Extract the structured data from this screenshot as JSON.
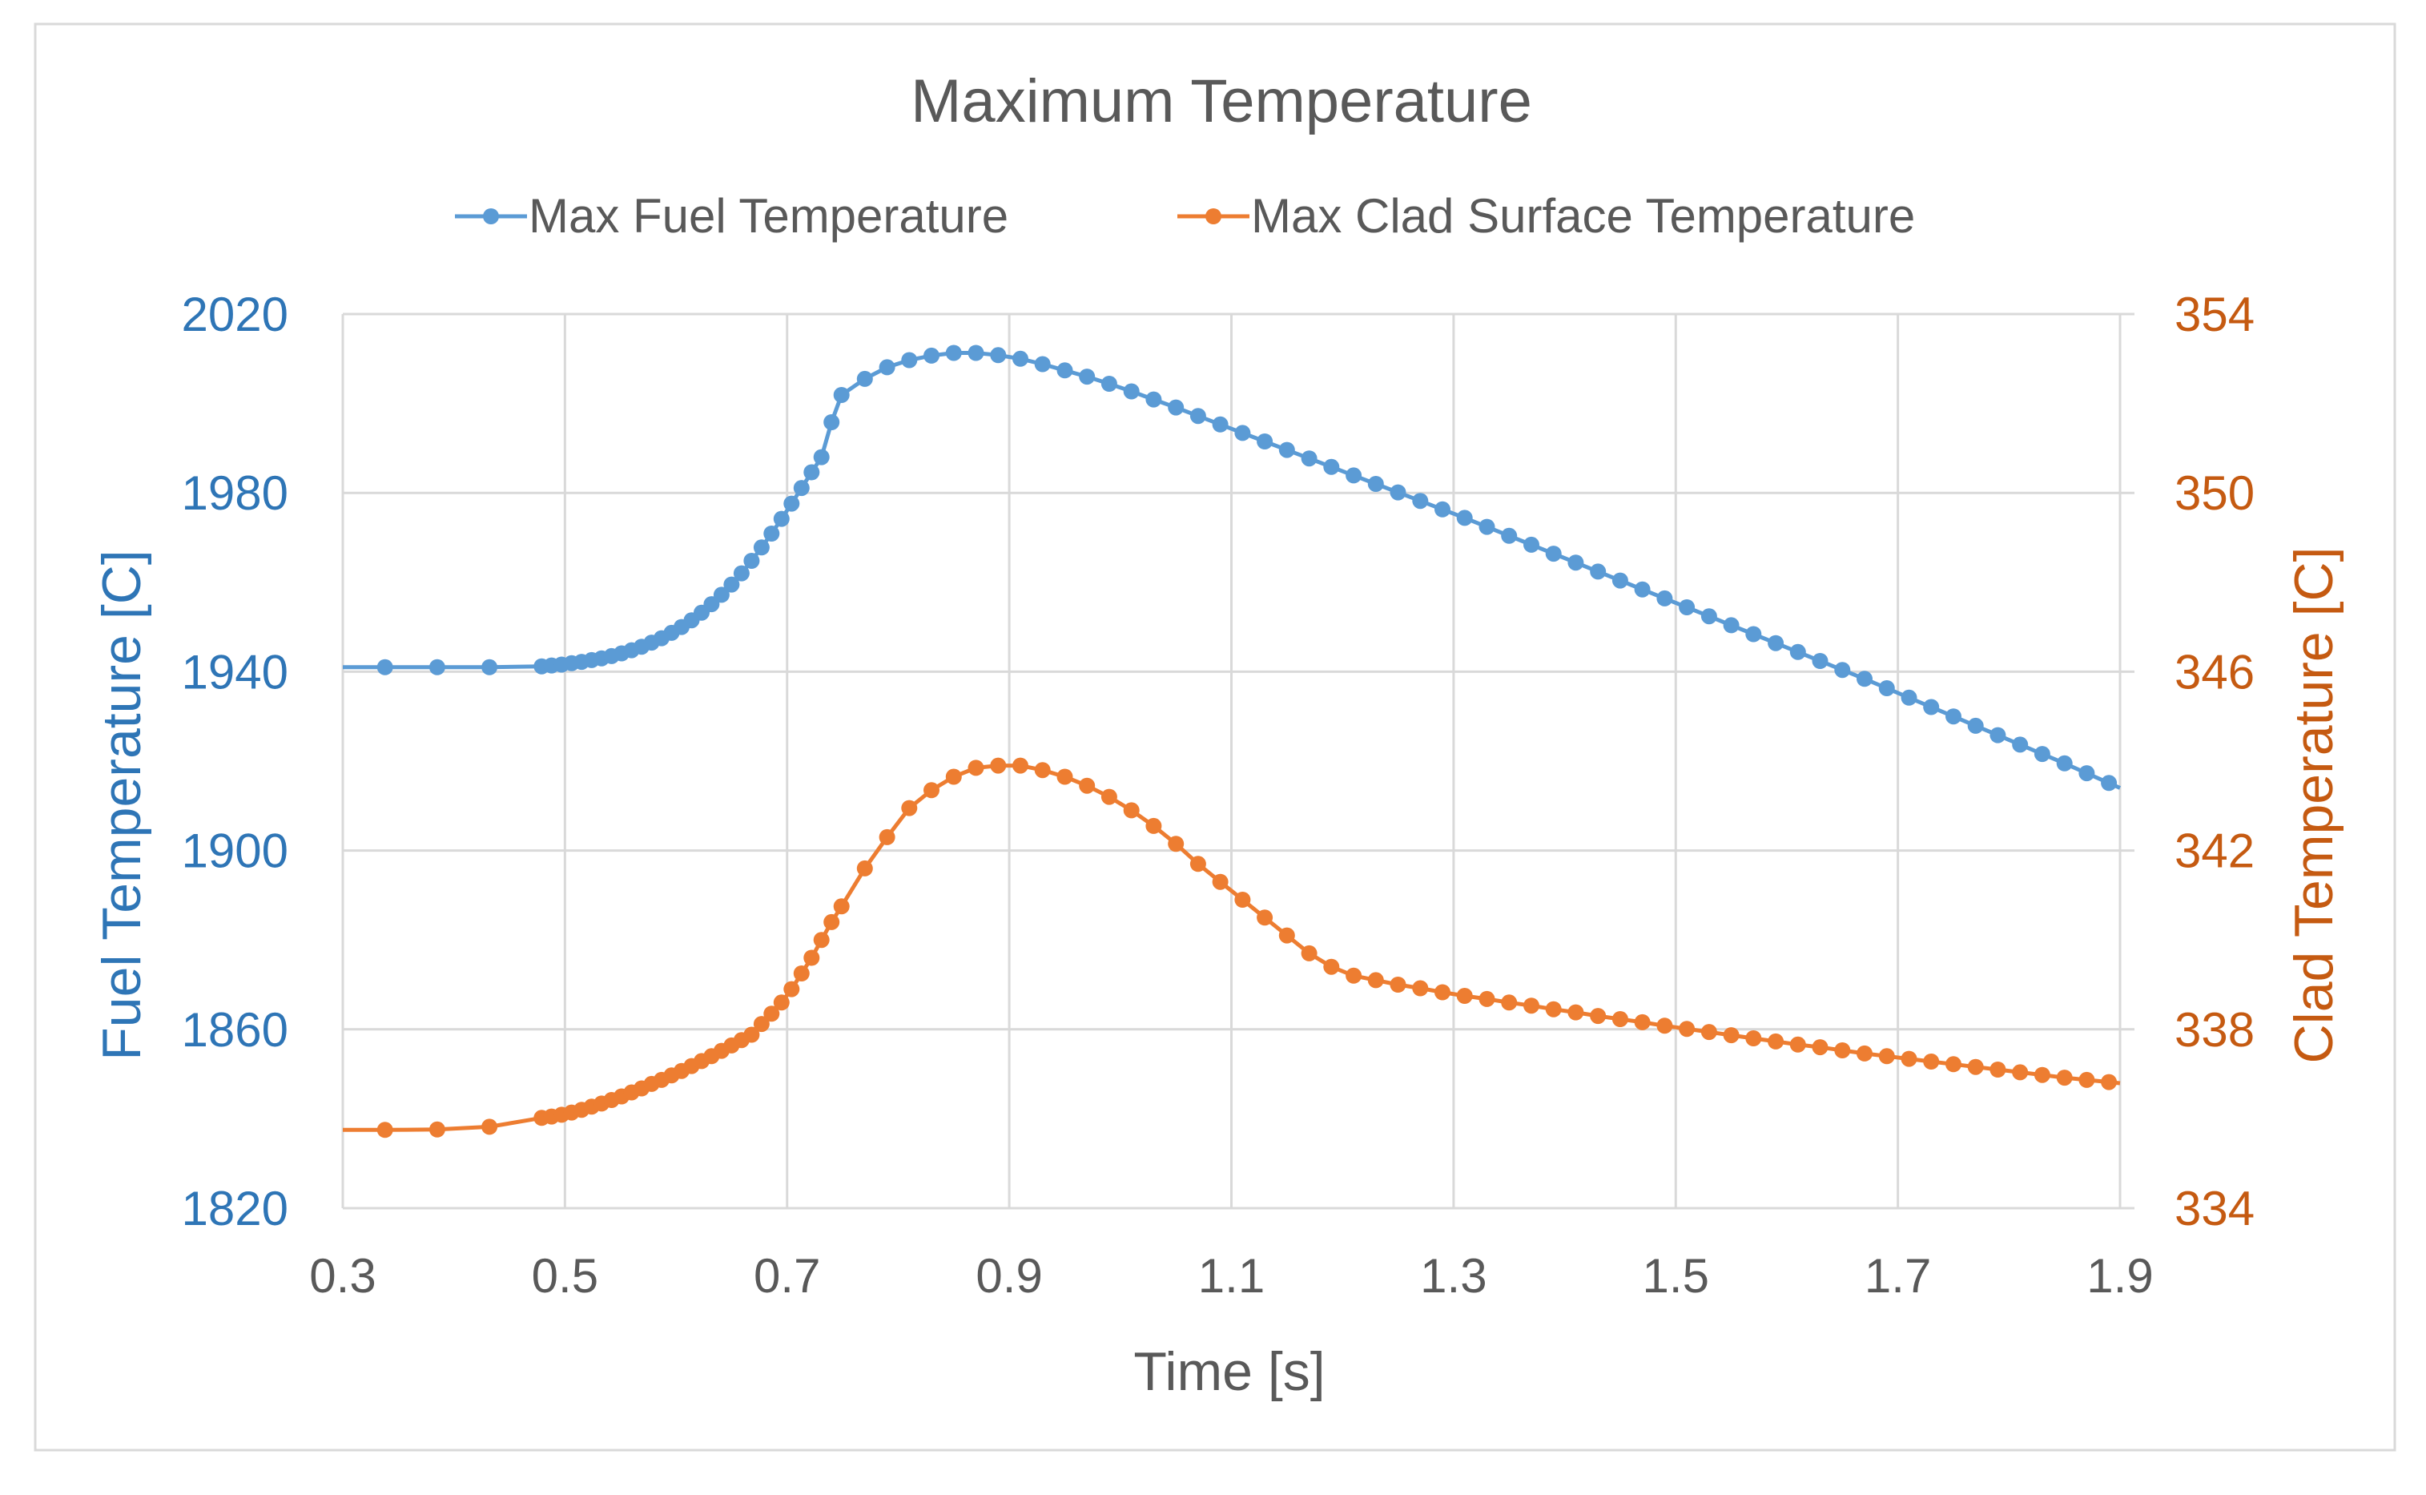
{
  "chart_data": {
    "type": "line",
    "title": "Maximum Temperature",
    "xlabel": "Time [s]",
    "ylabel": "Fuel Temperature [C]",
    "y2label": "Clad Temperature [C]",
    "xlim": [
      0.3,
      1.9
    ],
    "ylim": [
      1820,
      2020
    ],
    "y2lim": [
      334,
      354
    ],
    "x_ticks": [
      "0.3",
      "0.5",
      "0.7",
      "0.9",
      "1.1",
      "1.3",
      "1.5",
      "1.7",
      "1.9"
    ],
    "y_ticks": [
      "1820",
      "1860",
      "1900",
      "1940",
      "1980",
      "2020"
    ],
    "y2_ticks": [
      "334",
      "338",
      "342",
      "346",
      "350",
      "354"
    ],
    "grid": true,
    "legend_position": "top-center",
    "colors": {
      "fuel": "#5B9BD5",
      "clad": "#ED7D31",
      "fuel_axis_text": "#2E75B6",
      "clad_axis_text": "#C55A11",
      "text": "#595959",
      "grid": "#D9D9D9"
    },
    "series": [
      {
        "name": "Max Fuel Temperature",
        "axis": "left",
        "x": [
          0.338,
          0.385,
          0.432,
          0.479,
          0.488,
          0.497,
          0.506,
          0.515,
          0.524,
          0.533,
          0.542,
          0.551,
          0.56,
          0.569,
          0.578,
          0.587,
          0.596,
          0.605,
          0.614,
          0.623,
          0.632,
          0.641,
          0.65,
          0.659,
          0.668,
          0.677,
          0.686,
          0.695,
          0.704,
          0.713,
          0.722,
          0.731,
          0.74,
          0.749,
          0.77,
          0.79,
          0.81,
          0.83,
          0.85,
          0.87,
          0.89,
          0.91,
          0.93,
          0.95,
          0.97,
          0.99,
          1.01,
          1.03,
          1.05,
          1.07,
          1.09,
          1.11,
          1.13,
          1.15,
          1.17,
          1.19,
          1.21,
          1.23,
          1.25,
          1.27,
          1.29,
          1.31,
          1.33,
          1.35,
          1.37,
          1.39,
          1.41,
          1.43,
          1.45,
          1.47,
          1.49,
          1.51,
          1.53,
          1.55,
          1.57,
          1.59,
          1.61,
          1.63,
          1.65,
          1.67,
          1.69,
          1.71,
          1.73,
          1.75,
          1.77,
          1.79,
          1.81,
          1.83,
          1.85,
          1.87,
          1.89
        ],
        "values": [
          1941.0,
          1941.0,
          1941.0,
          1941.2,
          1941.4,
          1941.6,
          1941.9,
          1942.2,
          1942.6,
          1943.0,
          1943.5,
          1944.1,
          1944.8,
          1945.6,
          1946.5,
          1947.5,
          1948.7,
          1950.0,
          1951.5,
          1953.2,
          1955.1,
          1957.2,
          1959.5,
          1962.0,
          1964.8,
          1967.8,
          1970.9,
          1974.2,
          1977.6,
          1981.1,
          1984.6,
          1988.0,
          1995.8,
          2001.9,
          2005.5,
          2008.1,
          2009.7,
          2010.7,
          2011.3,
          2011.3,
          2010.8,
          2010.0,
          2008.8,
          2007.4,
          2006.0,
          2004.4,
          2002.7,
          2000.9,
          1999.1,
          1997.2,
          1995.3,
          1993.4,
          1991.5,
          1989.6,
          1987.7,
          1985.8,
          1983.9,
          1982.0,
          1980.1,
          1978.2,
          1976.3,
          1974.4,
          1972.4,
          1970.4,
          1968.4,
          1966.4,
          1964.4,
          1962.4,
          1960.4,
          1958.4,
          1956.4,
          1954.4,
          1952.4,
          1950.4,
          1948.4,
          1946.4,
          1944.4,
          1942.4,
          1940.4,
          1938.4,
          1936.3,
          1934.2,
          1932.1,
          1930.0,
          1927.9,
          1925.8,
          1923.7,
          1921.6,
          1919.5,
          1917.3,
          1915.1
        ]
      },
      {
        "name": "Max Clad Surface Temperature",
        "axis": "right",
        "x": [
          0.338,
          0.385,
          0.432,
          0.479,
          0.488,
          0.497,
          0.506,
          0.515,
          0.524,
          0.533,
          0.542,
          0.551,
          0.56,
          0.569,
          0.578,
          0.587,
          0.596,
          0.605,
          0.614,
          0.623,
          0.632,
          0.641,
          0.65,
          0.659,
          0.668,
          0.677,
          0.686,
          0.695,
          0.704,
          0.713,
          0.722,
          0.731,
          0.74,
          0.749,
          0.77,
          0.79,
          0.81,
          0.83,
          0.85,
          0.87,
          0.89,
          0.91,
          0.93,
          0.95,
          0.97,
          0.99,
          1.01,
          1.03,
          1.05,
          1.07,
          1.09,
          1.11,
          1.13,
          1.15,
          1.17,
          1.19,
          1.21,
          1.23,
          1.25,
          1.27,
          1.29,
          1.31,
          1.33,
          1.35,
          1.37,
          1.39,
          1.41,
          1.43,
          1.45,
          1.47,
          1.49,
          1.51,
          1.53,
          1.55,
          1.57,
          1.59,
          1.61,
          1.63,
          1.65,
          1.67,
          1.69,
          1.71,
          1.73,
          1.75,
          1.77,
          1.79,
          1.81,
          1.83,
          1.85,
          1.87,
          1.89
        ],
        "values": [
          335.75,
          335.76,
          335.82,
          336.02,
          336.05,
          336.09,
          336.14,
          336.2,
          336.27,
          336.34,
          336.42,
          336.5,
          336.59,
          336.68,
          336.78,
          336.87,
          336.97,
          337.07,
          337.18,
          337.29,
          337.4,
          337.52,
          337.64,
          337.76,
          337.88,
          338.12,
          338.35,
          338.6,
          338.9,
          339.25,
          339.6,
          340.0,
          340.4,
          340.75,
          341.6,
          342.3,
          342.95,
          343.35,
          343.65,
          343.85,
          343.9,
          343.9,
          343.8,
          343.65,
          343.45,
          343.2,
          342.9,
          342.55,
          342.15,
          341.7,
          341.3,
          340.9,
          340.5,
          340.1,
          339.7,
          339.4,
          339.2,
          339.1,
          339.0,
          338.92,
          338.83,
          338.75,
          338.68,
          338.6,
          338.53,
          338.45,
          338.38,
          338.3,
          338.23,
          338.16,
          338.08,
          338.01,
          337.94,
          337.87,
          337.8,
          337.73,
          337.66,
          337.6,
          337.53,
          337.46,
          337.4,
          337.34,
          337.28,
          337.22,
          337.16,
          337.1,
          337.04,
          336.98,
          336.92,
          336.87,
          336.82
        ]
      }
    ]
  }
}
